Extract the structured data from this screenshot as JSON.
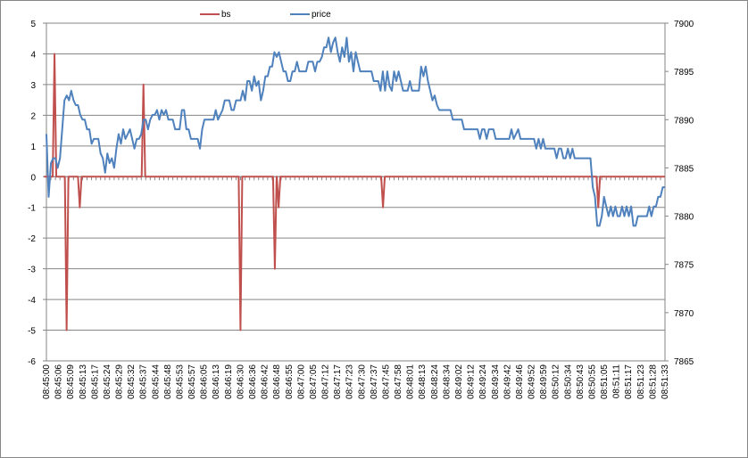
{
  "chart_data": {
    "type": "line",
    "title": "",
    "legend_position": "top",
    "grid": "horizontal",
    "series": [
      {
        "name": "bs",
        "axis": "left",
        "color": "#C0504D"
      },
      {
        "name": "price",
        "axis": "right",
        "color": "#4F81BD"
      }
    ],
    "y_left": {
      "range": [
        -6,
        5
      ],
      "ticks": [
        5,
        4,
        3,
        2,
        1,
        0,
        -1,
        -2,
        -3,
        -4,
        -5,
        -6
      ]
    },
    "y_right": {
      "range": [
        7865,
        7900
      ],
      "ticks": [
        7900,
        7895,
        7890,
        7885,
        7880,
        7875,
        7870,
        7865
      ]
    },
    "x_tick_labels": [
      "08:45:00",
      "08:45:06",
      "08:45:09",
      "08:45:13",
      "08:45:17",
      "08:45:24",
      "08:45:29",
      "08:45:32",
      "08:45:37",
      "08:45:44",
      "08:45:48",
      "08:45:53",
      "08:45:57",
      "08:46:05",
      "08:46:13",
      "08:46:19",
      "08:46:30",
      "08:46:36",
      "08:46:42",
      "08:46:48",
      "08:46:55",
      "08:47:00",
      "08:47:05",
      "08:47:12",
      "08:47:17",
      "08:47:23",
      "08:47:30",
      "08:47:37",
      "08:47:45",
      "08:47:58",
      "08:48:01",
      "08:48:13",
      "08:48:24",
      "08:48:34",
      "08:49:02",
      "08:49:12",
      "08:49:24",
      "08:49:34",
      "08:49:42",
      "08:49:46",
      "08:49:52",
      "08:49:59",
      "08:50:12",
      "08:50:34",
      "08:50:43",
      "08:50:55",
      "08:51:05",
      "08:51:11",
      "08:51:17",
      "08:51:23",
      "08:51:28",
      "08:51:33"
    ],
    "bs_spikes": [
      {
        "label": "08:45:00",
        "value": 0
      },
      {
        "label": "08:45:04",
        "value": 4
      },
      {
        "label": "08:45:08",
        "value": -5
      },
      {
        "label": "08:45:12",
        "value": -1
      },
      {
        "label": "08:45:37",
        "value": 3
      },
      {
        "label": "08:46:30",
        "value": -5
      },
      {
        "label": "08:46:47",
        "value": -3
      },
      {
        "label": "08:46:49",
        "value": -1
      },
      {
        "label": "08:47:43",
        "value": -1
      },
      {
        "label": "08:51:00",
        "value": -1
      }
    ],
    "price_points": [
      [
        0,
        7888.5
      ],
      [
        1,
        7882.0
      ],
      [
        2,
        7885.5
      ],
      [
        3,
        7886.0
      ],
      [
        4,
        7886.0
      ],
      [
        5,
        7885.0
      ],
      [
        6,
        7886.0
      ],
      [
        7,
        7889.0
      ],
      [
        8,
        7892.0
      ],
      [
        9,
        7892.5
      ],
      [
        10,
        7892.0
      ],
      [
        11,
        7893.0
      ],
      [
        12,
        7892.0
      ],
      [
        13,
        7891.5
      ],
      [
        14,
        7891.5
      ],
      [
        15,
        7890.5
      ],
      [
        16,
        7890.0
      ],
      [
        17,
        7890.0
      ],
      [
        18,
        7889.0
      ],
      [
        19,
        7889.0
      ],
      [
        20,
        7887.5
      ],
      [
        21,
        7888.0
      ],
      [
        22,
        7888.0
      ],
      [
        23,
        7888.0
      ],
      [
        24,
        7886.5
      ],
      [
        25,
        7886.0
      ],
      [
        26,
        7884.5
      ],
      [
        27,
        7886.5
      ],
      [
        28,
        7885.5
      ],
      [
        29,
        7886.0
      ],
      [
        30,
        7885.0
      ],
      [
        31,
        7887.0
      ],
      [
        32,
        7888.5
      ],
      [
        33,
        7887.5
      ],
      [
        34,
        7889.0
      ],
      [
        35,
        7888.0
      ],
      [
        36,
        7888.5
      ],
      [
        37,
        7889.0
      ],
      [
        38,
        7888.0
      ],
      [
        39,
        7887.0
      ],
      [
        40,
        7888.0
      ],
      [
        41,
        7888.0
      ],
      [
        42,
        7888.5
      ],
      [
        43,
        7890.0
      ],
      [
        44,
        7890.0
      ],
      [
        45,
        7889.0
      ],
      [
        46,
        7890.0
      ],
      [
        47,
        7890.5
      ],
      [
        48,
        7890.5
      ],
      [
        49,
        7891.0
      ],
      [
        50,
        7890.0
      ],
      [
        51,
        7891.0
      ],
      [
        52,
        7890.5
      ],
      [
        53,
        7891.0
      ],
      [
        54,
        7890.0
      ],
      [
        55,
        7890.0
      ],
      [
        56,
        7890.0
      ],
      [
        57,
        7889.0
      ],
      [
        58,
        7889.0
      ],
      [
        59,
        7889.0
      ],
      [
        60,
        7891.0
      ],
      [
        61,
        7891.0
      ],
      [
        62,
        7889.0
      ],
      [
        63,
        7889.0
      ],
      [
        64,
        7888.0
      ],
      [
        65,
        7888.0
      ],
      [
        66,
        7888.0
      ],
      [
        67,
        7888.0
      ],
      [
        68,
        7887.0
      ],
      [
        69,
        7889.0
      ],
      [
        70,
        7890.0
      ],
      [
        71,
        7890.0
      ],
      [
        72,
        7890.0
      ],
      [
        73,
        7890.0
      ],
      [
        74,
        7890.0
      ],
      [
        75,
        7891.0
      ],
      [
        76,
        7890.0
      ],
      [
        77,
        7890.5
      ],
      [
        78,
        7891.0
      ],
      [
        79,
        7892.0
      ],
      [
        80,
        7892.0
      ],
      [
        81,
        7892.0
      ],
      [
        82,
        7891.0
      ],
      [
        83,
        7891.0
      ],
      [
        84,
        7892.0
      ],
      [
        85,
        7892.0
      ],
      [
        86,
        7892.0
      ],
      [
        87,
        7893.0
      ],
      [
        88,
        7892.0
      ],
      [
        89,
        7894.0
      ],
      [
        90,
        7894.0
      ],
      [
        91,
        7893.0
      ],
      [
        92,
        7894.5
      ],
      [
        93,
        7893.5
      ],
      [
        94,
        7894.0
      ],
      [
        95,
        7892.0
      ],
      [
        96,
        7893.0
      ],
      [
        97,
        7894.5
      ],
      [
        98,
        7894.5
      ],
      [
        99,
        7895.5
      ],
      [
        100,
        7895.5
      ],
      [
        101,
        7897.0
      ],
      [
        102,
        7896.5
      ],
      [
        103,
        7897.0
      ],
      [
        104,
        7896.0
      ],
      [
        105,
        7895.0
      ],
      [
        106,
        7895.0
      ],
      [
        107,
        7894.0
      ],
      [
        108,
        7894.0
      ],
      [
        109,
        7895.0
      ],
      [
        110,
        7895.0
      ],
      [
        111,
        7896.0
      ],
      [
        112,
        7895.0
      ],
      [
        113,
        7895.0
      ],
      [
        114,
        7895.0
      ],
      [
        115,
        7895.0
      ],
      [
        116,
        7896.0
      ],
      [
        117,
        7896.0
      ],
      [
        118,
        7896.0
      ],
      [
        119,
        7895.0
      ],
      [
        120,
        7896.0
      ],
      [
        121,
        7896.0
      ],
      [
        122,
        7896.5
      ],
      [
        123,
        7897.5
      ],
      [
        124,
        7897.5
      ],
      [
        125,
        7898.5
      ],
      [
        126,
        7897.0
      ],
      [
        127,
        7898.0
      ],
      [
        128,
        7898.5
      ],
      [
        129,
        7897.0
      ],
      [
        130,
        7896.0
      ],
      [
        131,
        7897.5
      ],
      [
        132,
        7896.5
      ],
      [
        133,
        7898.5
      ],
      [
        134,
        7896.0
      ],
      [
        135,
        7897.0
      ],
      [
        136,
        7895.0
      ],
      [
        137,
        7897.0
      ],
      [
        138,
        7896.0
      ],
      [
        139,
        7895.0
      ],
      [
        140,
        7895.0
      ],
      [
        141,
        7895.0
      ],
      [
        142,
        7895.0
      ],
      [
        143,
        7895.0
      ],
      [
        144,
        7895.0
      ],
      [
        145,
        7894.0
      ],
      [
        146,
        7894.0
      ],
      [
        147,
        7894.0
      ],
      [
        148,
        7893.0
      ],
      [
        149,
        7895.0
      ],
      [
        150,
        7893.0
      ],
      [
        151,
        7895.0
      ],
      [
        152,
        7893.5
      ],
      [
        153,
        7893.0
      ],
      [
        154,
        7895.0
      ],
      [
        155,
        7894.0
      ],
      [
        156,
        7895.0
      ],
      [
        157,
        7894.0
      ],
      [
        158,
        7893.0
      ],
      [
        159,
        7893.0
      ],
      [
        160,
        7893.0
      ],
      [
        161,
        7894.0
      ],
      [
        162,
        7893.0
      ],
      [
        163,
        7893.0
      ],
      [
        164,
        7893.0
      ],
      [
        165,
        7893.0
      ],
      [
        166,
        7895.5
      ],
      [
        167,
        7894.5
      ],
      [
        168,
        7895.5
      ],
      [
        169,
        7894.0
      ],
      [
        170,
        7893.0
      ],
      [
        171,
        7892.0
      ],
      [
        172,
        7892.5
      ],
      [
        173,
        7891.5
      ],
      [
        174,
        7891.0
      ],
      [
        175,
        7891.0
      ],
      [
        176,
        7891.0
      ],
      [
        177,
        7891.0
      ],
      [
        178,
        7891.0
      ],
      [
        179,
        7891.0
      ],
      [
        180,
        7890.0
      ],
      [
        181,
        7890.0
      ],
      [
        182,
        7890.0
      ],
      [
        183,
        7890.0
      ],
      [
        184,
        7890.0
      ],
      [
        185,
        7889.0
      ],
      [
        186,
        7889.0
      ],
      [
        187,
        7889.0
      ],
      [
        188,
        7889.0
      ],
      [
        189,
        7889.0
      ],
      [
        190,
        7889.0
      ],
      [
        191,
        7889.0
      ],
      [
        192,
        7888.0
      ],
      [
        193,
        7889.0
      ],
      [
        194,
        7889.0
      ],
      [
        195,
        7888.0
      ],
      [
        196,
        7889.0
      ],
      [
        197,
        7889.0
      ],
      [
        198,
        7889.0
      ],
      [
        199,
        7888.0
      ],
      [
        200,
        7888.0
      ],
      [
        201,
        7888.0
      ],
      [
        202,
        7888.0
      ],
      [
        203,
        7888.0
      ],
      [
        204,
        7888.0
      ],
      [
        205,
        7888.0
      ],
      [
        206,
        7889.0
      ],
      [
        207,
        7888.0
      ],
      [
        208,
        7888.5
      ],
      [
        209,
        7889.0
      ],
      [
        210,
        7888.0
      ],
      [
        211,
        7888.0
      ],
      [
        212,
        7888.0
      ],
      [
        213,
        7888.0
      ],
      [
        214,
        7888.0
      ],
      [
        215,
        7888.0
      ],
      [
        216,
        7888.0
      ],
      [
        217,
        7887.0
      ],
      [
        218,
        7888.0
      ],
      [
        219,
        7887.0
      ],
      [
        220,
        7888.0
      ],
      [
        221,
        7887.0
      ],
      [
        222,
        7887.0
      ],
      [
        223,
        7887.0
      ],
      [
        224,
        7887.0
      ],
      [
        225,
        7887.0
      ],
      [
        226,
        7886.0
      ],
      [
        227,
        7887.0
      ],
      [
        228,
        7887.0
      ],
      [
        229,
        7886.0
      ],
      [
        230,
        7886.0
      ],
      [
        231,
        7887.0
      ],
      [
        232,
        7886.0
      ],
      [
        233,
        7887.0
      ],
      [
        234,
        7886.0
      ],
      [
        235,
        7886.0
      ],
      [
        236,
        7886.0
      ],
      [
        237,
        7886.0
      ],
      [
        238,
        7886.0
      ],
      [
        239,
        7886.0
      ],
      [
        240,
        7886.0
      ],
      [
        241,
        7886.0
      ],
      [
        242,
        7883.0
      ],
      [
        243,
        7882.0
      ],
      [
        244,
        7879.0
      ],
      [
        245,
        7879.0
      ],
      [
        246,
        7880.0
      ],
      [
        247,
        7882.0
      ],
      [
        248,
        7881.0
      ],
      [
        249,
        7880.0
      ],
      [
        250,
        7881.0
      ],
      [
        251,
        7880.0
      ],
      [
        252,
        7881.0
      ],
      [
        253,
        7880.0
      ],
      [
        254,
        7880.0
      ],
      [
        255,
        7881.0
      ],
      [
        256,
        7880.0
      ],
      [
        257,
        7881.0
      ],
      [
        258,
        7880.0
      ],
      [
        259,
        7881.0
      ],
      [
        260,
        7879.0
      ],
      [
        261,
        7879.0
      ],
      [
        262,
        7880.0
      ],
      [
        263,
        7880.0
      ],
      [
        264,
        7880.0
      ],
      [
        265,
        7880.0
      ],
      [
        266,
        7880.0
      ],
      [
        267,
        7881.0
      ],
      [
        268,
        7880.0
      ],
      [
        269,
        7881.0
      ],
      [
        270,
        7881.0
      ],
      [
        271,
        7882.0
      ],
      [
        272,
        7882.0
      ],
      [
        273,
        7883.0
      ],
      [
        274,
        7883.0
      ]
    ],
    "n_points": 275
  }
}
